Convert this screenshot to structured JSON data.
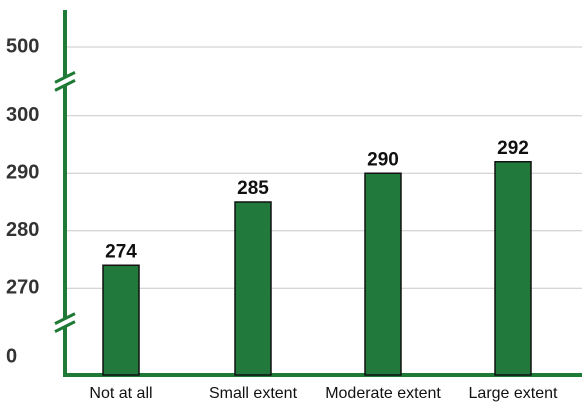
{
  "chart_data": {
    "type": "bar",
    "categories": [
      "Not at all",
      "Small extent",
      "Moderate extent",
      "Large extent"
    ],
    "values": [
      274,
      285,
      290,
      292
    ],
    "color": "#217a3c",
    "ylim": [
      0,
      500
    ],
    "yticks": [
      0,
      270,
      280,
      290,
      300,
      500
    ],
    "axis_breaks": [
      [
        0,
        270
      ],
      [
        300,
        500
      ]
    ],
    "grid": true
  }
}
